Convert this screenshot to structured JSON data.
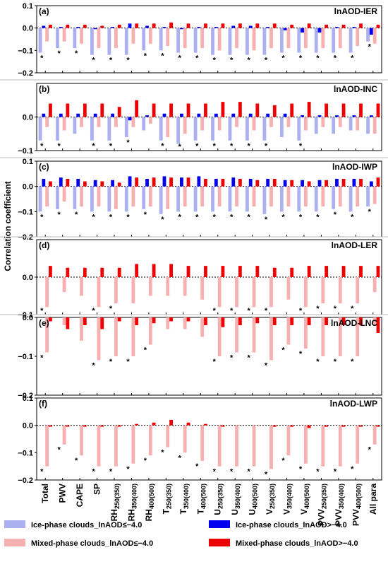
{
  "ylabel": "Correlation coefficient",
  "categories": [
    [
      "Total",
      ""
    ],
    [
      "PWV",
      ""
    ],
    [
      "CAPE",
      ""
    ],
    [
      "SP",
      ""
    ],
    [
      "RH",
      "250(350)"
    ],
    [
      "RH",
      "350(400)"
    ],
    [
      "RH",
      "400(500)"
    ],
    [
      "T",
      "250(350)"
    ],
    [
      "T",
      "350(400)"
    ],
    [
      "T",
      "400(500)"
    ],
    [
      "U",
      "250(350)"
    ],
    [
      "U",
      "350(400)"
    ],
    [
      "U",
      "400(500)"
    ],
    [
      "V",
      "250(350)"
    ],
    [
      "V",
      "350(400)"
    ],
    [
      "V",
      "400(500)"
    ],
    [
      "PVV",
      "250(350)"
    ],
    [
      "PVV",
      "350(400)"
    ],
    [
      "PVV",
      "400(500)"
    ],
    [
      "All para",
      ""
    ]
  ],
  "legend": [
    {
      "label": "Ice-phase clouds_lnAOD≤−4.0",
      "color": "#aab0f0"
    },
    {
      "label": "Ice-phase clouds_lnAOD>−4.0",
      "color": "#0000ee"
    },
    {
      "label": "Mixed-phase clouds_lnAOD≤−4.0",
      "color": "#f7b0b0"
    },
    {
      "label": "Mixed-phase clouds_lnAOD>−4.0",
      "color": "#ee0000"
    }
  ],
  "star": "*",
  "chart_data": [
    {
      "type": "bar",
      "panel": "(a)",
      "title": "lnAOD-IER",
      "ylim": [
        -0.2,
        0.1
      ],
      "yticks": [
        "0.1",
        "0.0",
        "−0.1",
        "−0.2"
      ],
      "series": [
        {
          "name": "Ice-phase clouds_lnAOD≤−4.0",
          "values": [
            -0.11,
            -0.09,
            -0.09,
            -0.12,
            -0.12,
            -0.12,
            -0.1,
            -0.1,
            -0.11,
            -0.11,
            -0.12,
            -0.12,
            -0.12,
            -0.12,
            -0.11,
            -0.11,
            -0.11,
            -0.11,
            -0.11,
            -0.06
          ]
        },
        {
          "name": "Ice-phase clouds_lnAOD>−4.0",
          "values": [
            0.01,
            0.005,
            0.005,
            -0.005,
            0.005,
            0.02,
            0.01,
            0.005,
            -0.005,
            0.005,
            0.005,
            0.01,
            0.01,
            0.005,
            -0.01,
            -0.02,
            -0.02,
            0.005,
            0.005,
            -0.03
          ]
        },
        {
          "name": "Mixed-phase clouds_lnAOD≤−4.0",
          "values": [
            -0.06,
            -0.06,
            -0.07,
            -0.09,
            -0.09,
            -0.07,
            -0.07,
            -0.08,
            -0.09,
            -0.09,
            -0.1,
            -0.09,
            -0.1,
            -0.09,
            -0.09,
            -0.09,
            -0.09,
            -0.09,
            -0.08,
            -0.07
          ]
        },
        {
          "name": "Mixed-phase clouds_lnAOD>−4.0",
          "values": [
            0.015,
            0.015,
            0.015,
            0.01,
            0.015,
            0.02,
            0.02,
            0.025,
            0.02,
            0.02,
            0.02,
            0.02,
            0.02,
            0.02,
            0.015,
            0.02,
            0.015,
            0.015,
            0.02,
            0.015
          ]
        }
      ],
      "stars": [
        0,
        1,
        2,
        3,
        4,
        5,
        6,
        7,
        8,
        9,
        10,
        11,
        12,
        13,
        14,
        15,
        16,
        17,
        18,
        19
      ]
    },
    {
      "type": "bar",
      "panel": "(b)",
      "title": "lnAOD-INC",
      "ylim": [
        -0.1,
        0.1
      ],
      "yticks": [
        "0.0",
        "−0.1"
      ],
      "series": [
        {
          "name": "Ice-phase clouds_lnAOD≤−4.0",
          "values": [
            -0.07,
            -0.07,
            -0.05,
            -0.07,
            -0.07,
            -0.06,
            -0.04,
            -0.07,
            -0.08,
            -0.07,
            -0.07,
            -0.07,
            -0.07,
            -0.07,
            -0.06,
            -0.07,
            -0.05,
            -0.05,
            -0.04,
            -0.05
          ]
        },
        {
          "name": "Ice-phase clouds_lnAOD>−4.0",
          "values": [
            0.01,
            0.01,
            0.01,
            0.01,
            0.01,
            -0.01,
            0.005,
            0.01,
            0.01,
            0.01,
            0.01,
            0.01,
            0.01,
            0.01,
            0.01,
            0.005,
            0.005,
            0.005,
            0.005,
            0.005
          ]
        },
        {
          "name": "Mixed-phase clouds_lnAOD≤−4.0",
          "values": [
            -0.03,
            -0.04,
            -0.03,
            -0.03,
            -0.03,
            -0.03,
            -0.02,
            -0.06,
            -0.05,
            -0.04,
            -0.04,
            -0.03,
            -0.04,
            -0.03,
            -0.03,
            -0.04,
            -0.03,
            -0.03,
            -0.04,
            -0.05
          ]
        },
        {
          "name": "Mixed-phase clouds_lnAOD>−4.0",
          "values": [
            0.04,
            0.04,
            0.04,
            0.04,
            0.03,
            0.05,
            0.04,
            0.04,
            0.04,
            0.04,
            0.045,
            0.045,
            0.04,
            0.035,
            0.04,
            0.045,
            0.04,
            0.04,
            0.04,
            0.04
          ]
        }
      ],
      "stars": [
        0,
        1,
        3,
        4,
        5,
        7,
        8,
        9,
        10,
        11,
        12,
        13,
        15
      ]
    },
    {
      "type": "bar",
      "panel": "(c)",
      "title": "lnAOD-IWP",
      "ylim": [
        -0.2,
        0.1
      ],
      "yticks": [
        "0.1",
        "0.0",
        "−0.1",
        "−0.2"
      ],
      "series": [
        {
          "name": "Ice-phase clouds_lnAOD≤−4.0",
          "values": [
            -0.1,
            -0.09,
            -0.09,
            -0.1,
            -0.1,
            -0.1,
            -0.09,
            -0.11,
            -0.1,
            -0.1,
            -0.1,
            -0.1,
            -0.1,
            -0.11,
            -0.1,
            -0.1,
            -0.1,
            -0.09,
            -0.1,
            -0.08
          ]
        },
        {
          "name": "Ice-phase clouds_lnAOD>−4.0",
          "values": [
            0.03,
            0.035,
            0.03,
            0.025,
            0.025,
            0.04,
            0.03,
            0.04,
            0.035,
            0.04,
            0.03,
            0.035,
            0.03,
            0.03,
            0.025,
            0.025,
            0.025,
            0.03,
            0.03,
            0.02
          ]
        },
        {
          "name": "Mixed-phase clouds_lnAOD≤−4.0",
          "values": [
            -0.08,
            -0.06,
            -0.08,
            -0.08,
            -0.09,
            -0.08,
            -0.08,
            -0.09,
            -0.08,
            -0.08,
            -0.08,
            -0.08,
            -0.08,
            -0.08,
            -0.08,
            -0.08,
            -0.08,
            -0.08,
            -0.08,
            -0.07
          ]
        },
        {
          "name": "Mixed-phase clouds_lnAOD>−4.0",
          "values": [
            0.02,
            0.03,
            0.02,
            0.02,
            0.015,
            0.035,
            0.035,
            0.035,
            0.035,
            0.03,
            0.03,
            0.03,
            0.025,
            0.03,
            0.025,
            0.02,
            0.025,
            0.03,
            0.03,
            0.035
          ]
        }
      ],
      "stars": [
        0,
        1,
        2,
        3,
        4,
        5,
        6,
        7,
        8,
        9,
        10,
        11,
        12,
        13,
        14,
        15,
        16,
        17,
        18,
        19
      ]
    },
    {
      "type": "bar",
      "panel": "(d)",
      "title": "lnAOD-LER",
      "ylim": [
        -0.1,
        0.1
      ],
      "yticks": [
        "0.0",
        "−0.1"
      ],
      "series": [
        {
          "name": "Mixed-phase clouds_lnAOD≤−4.0",
          "values": [
            -0.08,
            -0.04,
            -0.05,
            -0.08,
            -0.07,
            -0.07,
            -0.05,
            -0.05,
            -0.05,
            -0.06,
            -0.08,
            -0.08,
            -0.08,
            -0.08,
            -0.06,
            -0.08,
            -0.07,
            -0.07,
            -0.07,
            -0.04
          ]
        },
        {
          "name": "Mixed-phase clouds_lnAOD>−4.0",
          "values": [
            0.03,
            0.025,
            0.025,
            0.025,
            0.025,
            0.035,
            0.035,
            0.035,
            0.03,
            0.03,
            0.03,
            0.03,
            0.03,
            0.025,
            0.025,
            0.03,
            0.03,
            0.03,
            0.03,
            0.03
          ]
        }
      ],
      "stars": [
        0,
        3,
        4,
        10,
        11,
        12,
        13,
        15,
        16,
        17,
        18
      ]
    },
    {
      "type": "bar",
      "panel": "(e)",
      "title": "lnAOD-LNC",
      "ylim": [
        -0.2,
        0.0
      ],
      "yticks": [
        "0.0",
        "−0.1",
        "−0.2"
      ],
      "series": [
        {
          "name": "Mixed-phase clouds_lnAOD≤−4.0",
          "values": [
            -0.09,
            -0.02,
            -0.06,
            -0.11,
            -0.1,
            -0.1,
            -0.07,
            -0.03,
            -0.03,
            -0.05,
            -0.1,
            -0.09,
            -0.09,
            -0.11,
            -0.07,
            -0.08,
            -0.1,
            -0.1,
            -0.1,
            -0.02
          ]
        },
        {
          "name": "Mixed-phase clouds_lnAOD>−4.0",
          "values": [
            -0.01,
            -0.03,
            -0.02,
            -0.03,
            -0.01,
            -0.02,
            -0.015,
            -0.01,
            -0.01,
            -0.02,
            -0.025,
            -0.02,
            -0.015,
            -0.02,
            -0.02,
            -0.02,
            -0.02,
            -0.02,
            -0.02,
            -0.04
          ]
        }
      ],
      "stars": [
        0,
        3,
        4,
        5,
        6,
        10,
        11,
        12,
        13,
        14,
        15,
        16,
        17,
        18
      ]
    },
    {
      "type": "bar",
      "panel": "(f)",
      "title": "lnAOD-LWP",
      "ylim": [
        -0.2,
        0.1
      ],
      "yticks": [
        "0.1",
        "0.0",
        "−0.1",
        "−0.2"
      ],
      "series": [
        {
          "name": "Mixed-phase clouds_lnAOD≤−4.0",
          "values": [
            -0.15,
            -0.07,
            -0.11,
            -0.15,
            -0.15,
            -0.14,
            -0.11,
            -0.08,
            -0.1,
            -0.13,
            -0.15,
            -0.15,
            -0.15,
            -0.16,
            -0.11,
            -0.14,
            -0.15,
            -0.15,
            -0.14,
            -0.07
          ]
        },
        {
          "name": "Mixed-phase clouds_lnAOD>−4.0",
          "values": [
            -0.005,
            -0.005,
            -0.005,
            -0.005,
            -0.005,
            0.005,
            0.01,
            0.02,
            0.01,
            0.005,
            -0.005,
            0.0,
            0.0,
            -0.005,
            -0.005,
            -0.01,
            -0.005,
            -0.005,
            -0.005,
            -0.005
          ]
        }
      ],
      "stars": [
        0,
        1,
        2,
        3,
        4,
        5,
        6,
        7,
        8,
        9,
        10,
        11,
        12,
        13,
        14,
        15,
        16,
        17,
        18,
        19
      ]
    }
  ]
}
